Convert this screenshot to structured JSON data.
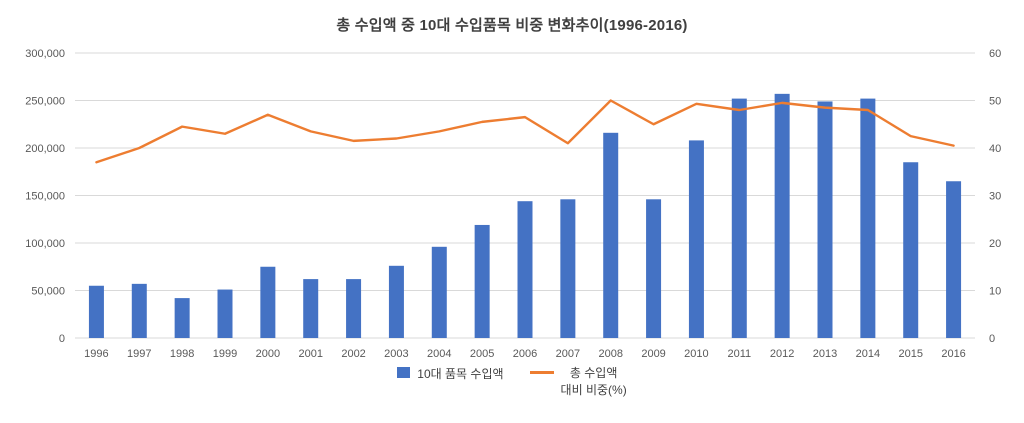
{
  "chart": {
    "title": "총 수입액 중 10대 수입품목 비중 변화추이(1996-2016)",
    "legend": {
      "bar_label": "10대 품목 수입액",
      "line_label_line1": "총 수입액",
      "line_label_line2": "대비 비중(%)"
    },
    "colors": {
      "bar": "#4472C4",
      "line": "#ED7D31",
      "grid": "#D9D9D9",
      "tick_text": "#595959",
      "title_text": "#404040"
    }
  },
  "chart_data": {
    "type": "bar+line combo",
    "title": "총 수입액 중 10대 수입품목 비중 변화추이(1996-2016)",
    "categories": [
      "1996",
      "1997",
      "1998",
      "1999",
      "2000",
      "2001",
      "2002",
      "2003",
      "2004",
      "2005",
      "2006",
      "2007",
      "2008",
      "2009",
      "2010",
      "2011",
      "2012",
      "2013",
      "2014",
      "2015",
      "2016"
    ],
    "series": [
      {
        "name": "10대 품목 수입액",
        "type": "bar",
        "axis": "left",
        "color": "#4472C4",
        "values": [
          55000,
          57000,
          42000,
          51000,
          75000,
          62000,
          62000,
          76000,
          96000,
          119000,
          144000,
          146000,
          216000,
          146000,
          208000,
          252000,
          257000,
          249000,
          252000,
          185000,
          165000
        ]
      },
      {
        "name": "총 수입액 대비 비중(%)",
        "type": "line",
        "axis": "right",
        "color": "#ED7D31",
        "values": [
          37,
          40,
          44.5,
          43,
          47,
          43.5,
          41.5,
          42,
          43.5,
          45.5,
          46.5,
          41,
          50,
          45,
          49.3,
          48,
          49.5,
          48.5,
          48,
          42.5,
          40.5
        ]
      }
    ],
    "left_axis": {
      "min": 0,
      "max": 300000,
      "step": 50000
    },
    "right_axis": {
      "min": 0,
      "max": 60,
      "step": 10
    },
    "grid": true,
    "legend_position": "bottom"
  }
}
